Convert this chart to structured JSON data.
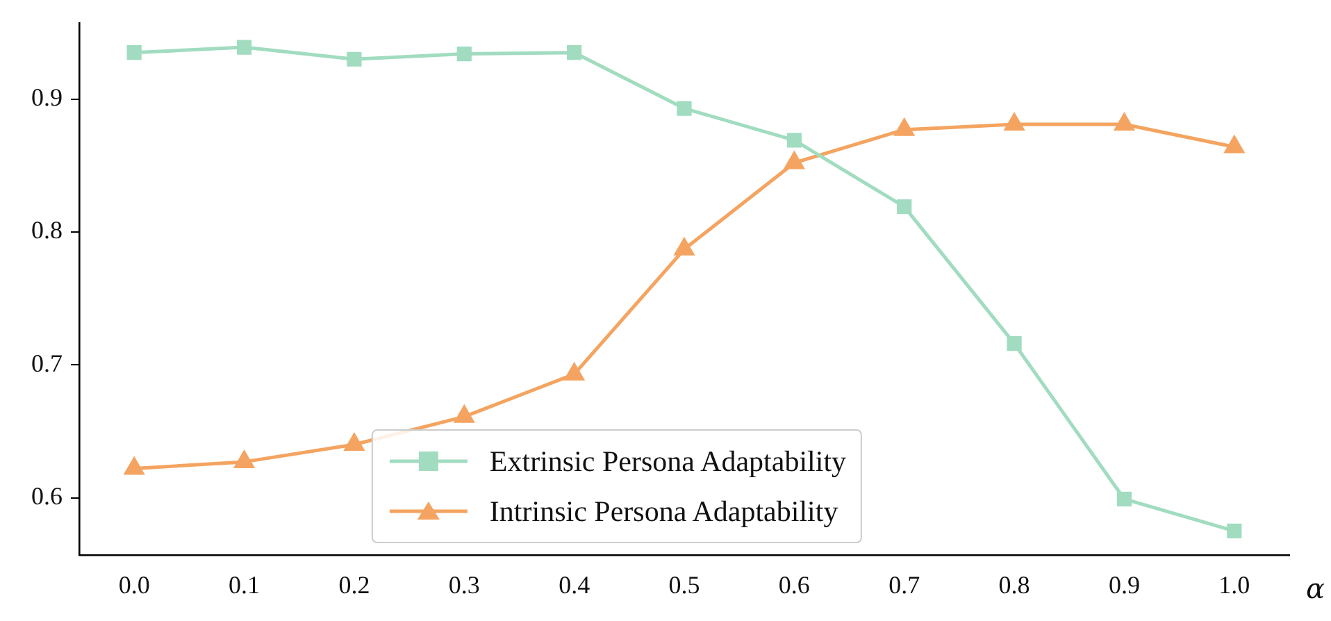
{
  "chart_data": {
    "type": "line",
    "xlabel": "α",
    "x": [
      0.0,
      0.1,
      0.2,
      0.3,
      0.4,
      0.5,
      0.6,
      0.7,
      0.8,
      0.9,
      1.0
    ],
    "series": [
      {
        "name": "Extrinsic Persona Adaptability",
        "color": "#a1dcc0",
        "marker": "square",
        "values": [
          0.935,
          0.939,
          0.93,
          0.934,
          0.935,
          0.893,
          0.869,
          0.819,
          0.716,
          0.599,
          0.575
        ]
      },
      {
        "name": "Intrinsic Persona Adaptability",
        "color": "#f4a460",
        "marker": "triangle",
        "values": [
          0.622,
          0.627,
          0.64,
          0.661,
          0.693,
          0.787,
          0.852,
          0.877,
          0.881,
          0.881,
          0.864
        ]
      }
    ],
    "xlim": [
      -0.05,
      1.05
    ],
    "xticks": [
      {
        "value": 0,
        "label": "0.0"
      },
      0.1,
      0.2,
      0.3,
      0.4,
      0.5,
      0.6,
      0.7,
      0.8,
      0.9,
      {
        "value": 1,
        "label": "1.0"
      }
    ],
    "ylim": [
      0.557,
      0.957
    ],
    "yticks": [
      0.6,
      0.7,
      0.8,
      0.9
    ],
    "grid": false,
    "legend": "bottom",
    "line_style": "solid"
  }
}
